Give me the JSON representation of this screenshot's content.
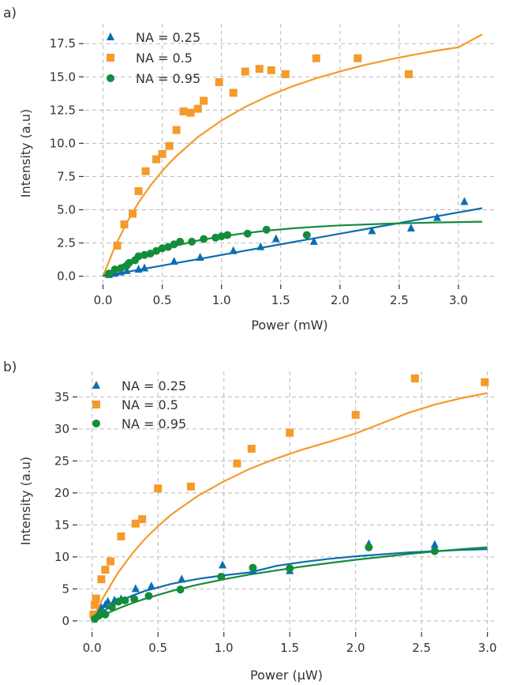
{
  "figure": {
    "background": "#ffffff"
  },
  "colors": {
    "na025": "#0C6DB1",
    "na05": "#F59A2B",
    "na095": "#138D3B",
    "grid": "#B8B8B8",
    "text": "#333333"
  },
  "chart_data": [
    {
      "type": "scatter",
      "panel_label": "a)",
      "xlabel": "Power (mW)",
      "ylabel": "Intensity (a.u)",
      "xlim": [
        -0.15,
        3.3
      ],
      "ylim": [
        -0.5,
        19.0
      ],
      "xticks": [
        0.0,
        0.5,
        1.0,
        1.5,
        2.0,
        2.5,
        3.0
      ],
      "xtick_labels": [
        "0.0",
        "0.5",
        "1.0",
        "1.5",
        "2.0",
        "2.5",
        "3.0"
      ],
      "yticks": [
        0.0,
        2.5,
        5.0,
        7.5,
        10.0,
        12.5,
        15.0,
        17.5
      ],
      "ytick_labels": [
        "0.0",
        "2.5",
        "5.0",
        "7.5",
        "10.0",
        "12.5",
        "15.0",
        "17.5"
      ],
      "grid": true,
      "legend_position": "top-left",
      "series": [
        {
          "name": "NA = 0.25",
          "marker": "triangle",
          "color": "#0C6DB1",
          "points": [
            [
              0.05,
              0.1
            ],
            [
              0.1,
              0.2
            ],
            [
              0.15,
              0.3
            ],
            [
              0.2,
              0.4
            ],
            [
              0.3,
              0.5
            ],
            [
              0.35,
              0.6
            ],
            [
              0.6,
              1.1
            ],
            [
              0.82,
              1.4
            ],
            [
              1.1,
              1.9
            ],
            [
              1.33,
              2.2
            ],
            [
              1.46,
              2.8
            ],
            [
              1.78,
              2.6
            ],
            [
              2.27,
              3.4
            ],
            [
              2.6,
              3.6
            ],
            [
              2.82,
              4.4
            ],
            [
              3.05,
              5.6
            ]
          ],
          "fit": [
            [
              0.0,
              0.0
            ],
            [
              0.4,
              0.64
            ],
            [
              0.8,
              1.28
            ],
            [
              1.2,
              1.92
            ],
            [
              1.6,
              2.56
            ],
            [
              2.0,
              3.2
            ],
            [
              2.4,
              3.84
            ],
            [
              2.8,
              4.48
            ],
            [
              3.2,
              5.12
            ]
          ]
        },
        {
          "name": "NA = 0.5",
          "marker": "square",
          "color": "#F59A2B",
          "points": [
            [
              0.12,
              2.3
            ],
            [
              0.18,
              3.9
            ],
            [
              0.25,
              4.7
            ],
            [
              0.3,
              6.4
            ],
            [
              0.36,
              7.9
            ],
            [
              0.45,
              8.8
            ],
            [
              0.5,
              9.2
            ],
            [
              0.56,
              9.8
            ],
            [
              0.62,
              11.0
            ],
            [
              0.68,
              12.4
            ],
            [
              0.74,
              12.3
            ],
            [
              0.8,
              12.6
            ],
            [
              0.85,
              13.2
            ],
            [
              0.98,
              14.6
            ],
            [
              1.1,
              13.8
            ],
            [
              1.2,
              15.4
            ],
            [
              1.32,
              15.6
            ],
            [
              1.42,
              15.5
            ],
            [
              1.54,
              15.2
            ],
            [
              1.8,
              16.4
            ],
            [
              2.15,
              16.4
            ],
            [
              2.58,
              15.2
            ]
          ],
          "fit": [
            [
              0.0,
              0.0
            ],
            [
              0.1,
              2.21
            ],
            [
              0.2,
              4.02
            ],
            [
              0.3,
              5.54
            ],
            [
              0.4,
              6.82
            ],
            [
              0.5,
              7.92
            ],
            [
              0.6,
              8.88
            ],
            [
              0.8,
              10.47
            ],
            [
              1.0,
              11.72
            ],
            [
              1.2,
              12.74
            ],
            [
              1.4,
              13.58
            ],
            [
              1.6,
              14.29
            ],
            [
              1.8,
              14.89
            ],
            [
              2.0,
              15.41
            ],
            [
              2.2,
              15.87
            ],
            [
              2.4,
              16.27
            ],
            [
              2.6,
              16.63
            ],
            [
              2.8,
              16.95
            ],
            [
              3.0,
              17.23
            ],
            [
              3.2,
              18.2
            ]
          ]
        },
        {
          "name": "NA = 0.95",
          "marker": "circle",
          "color": "#138D3B",
          "points": [
            [
              0.05,
              0.2
            ],
            [
              0.1,
              0.5
            ],
            [
              0.15,
              0.6
            ],
            [
              0.2,
              0.8
            ],
            [
              0.22,
              1.0
            ],
            [
              0.27,
              1.2
            ],
            [
              0.3,
              1.5
            ],
            [
              0.35,
              1.6
            ],
            [
              0.4,
              1.7
            ],
            [
              0.45,
              1.9
            ],
            [
              0.5,
              2.1
            ],
            [
              0.55,
              2.2
            ],
            [
              0.6,
              2.4
            ],
            [
              0.65,
              2.6
            ],
            [
              0.75,
              2.6
            ],
            [
              0.85,
              2.8
            ],
            [
              0.95,
              2.9
            ],
            [
              1.0,
              3.0
            ],
            [
              1.05,
              3.1
            ],
            [
              1.22,
              3.2
            ],
            [
              1.38,
              3.5
            ],
            [
              1.72,
              3.1
            ]
          ],
          "fit": [
            [
              0.0,
              0.0
            ],
            [
              0.1,
              0.56
            ],
            [
              0.2,
              1.02
            ],
            [
              0.3,
              1.41
            ],
            [
              0.4,
              1.74
            ],
            [
              0.5,
              2.03
            ],
            [
              0.6,
              2.27
            ],
            [
              0.8,
              2.68
            ],
            [
              1.0,
              2.99
            ],
            [
              1.2,
              3.24
            ],
            [
              1.4,
              3.44
            ],
            [
              1.6,
              3.6
            ],
            [
              1.8,
              3.72
            ],
            [
              2.0,
              3.82
            ],
            [
              2.4,
              3.95
            ],
            [
              2.8,
              4.04
            ],
            [
              3.2,
              4.1
            ]
          ]
        }
      ]
    },
    {
      "type": "scatter",
      "panel_label": "b)",
      "xlabel": "Power (µW)",
      "ylabel": "Intensity (a.u)",
      "xlim": [
        -0.1,
        3.05
      ],
      "ylim": [
        -1.5,
        39.0
      ],
      "xticks": [
        0.0,
        0.5,
        1.0,
        1.5,
        2.0,
        2.5,
        3.0
      ],
      "xtick_labels": [
        "0.0",
        "0.5",
        "1.0",
        "1.5",
        "2.0",
        "2.5",
        "3.0"
      ],
      "yticks": [
        0,
        5,
        10,
        15,
        20,
        25,
        30,
        35
      ],
      "ytick_labels": [
        "0",
        "5",
        "10",
        "15",
        "20",
        "25",
        "30",
        "35"
      ],
      "grid": true,
      "legend_position": "top-left",
      "series": [
        {
          "name": "NA = 0.25",
          "marker": "triangle",
          "color": "#0C6DB1",
          "points": [
            [
              0.02,
              0.5
            ],
            [
              0.05,
              1.2
            ],
            [
              0.07,
              2.0
            ],
            [
              0.1,
              2.5
            ],
            [
              0.12,
              3.0
            ],
            [
              0.17,
              3.2
            ],
            [
              0.22,
              3.4
            ],
            [
              0.33,
              5.0
            ],
            [
              0.45,
              5.4
            ],
            [
              0.68,
              6.5
            ],
            [
              0.99,
              8.7
            ],
            [
              1.22,
              7.8
            ],
            [
              1.5,
              7.8
            ],
            [
              2.1,
              12.0
            ],
            [
              2.6,
              11.9
            ]
          ],
          "fit": [
            [
              0.0,
              0.0
            ],
            [
              0.1,
              1.7
            ],
            [
              0.2,
              2.95
            ],
            [
              0.3,
              3.91
            ],
            [
              0.4,
              4.66
            ],
            [
              0.6,
              5.77
            ],
            [
              0.8,
              6.55
            ],
            [
              1.0,
              7.13
            ],
            [
              1.2,
              7.57
            ],
            [
              1.4,
              8.6
            ],
            [
              1.6,
              9.2
            ],
            [
              1.8,
              9.7
            ],
            [
              2.0,
              10.1
            ],
            [
              2.2,
              10.4
            ],
            [
              2.4,
              10.7
            ],
            [
              2.6,
              10.9
            ],
            [
              2.8,
              11.1
            ],
            [
              3.0,
              11.2
            ]
          ]
        },
        {
          "name": "NA = 0.5",
          "marker": "square",
          "color": "#F59A2B",
          "points": [
            [
              0.01,
              1.0
            ],
            [
              0.02,
              2.5
            ],
            [
              0.03,
              3.5
            ],
            [
              0.07,
              6.5
            ],
            [
              0.1,
              8.0
            ],
            [
              0.14,
              9.3
            ],
            [
              0.22,
              13.2
            ],
            [
              0.33,
              15.2
            ],
            [
              0.38,
              15.9
            ],
            [
              0.5,
              20.7
            ],
            [
              0.75,
              21.0
            ],
            [
              1.1,
              24.6
            ],
            [
              1.21,
              26.9
            ],
            [
              1.5,
              29.4
            ],
            [
              2.0,
              32.2
            ],
            [
              2.45,
              37.9
            ],
            [
              2.98,
              37.3
            ]
          ],
          "fit": [
            [
              0.0,
              0.0
            ],
            [
              0.05,
              2.2
            ],
            [
              0.1,
              4.2
            ],
            [
              0.2,
              7.6
            ],
            [
              0.3,
              10.4
            ],
            [
              0.4,
              12.8
            ],
            [
              0.5,
              14.8
            ],
            [
              0.6,
              16.6
            ],
            [
              0.8,
              19.5
            ],
            [
              1.0,
              21.8
            ],
            [
              1.2,
              23.8
            ],
            [
              1.4,
              25.4
            ],
            [
              1.6,
              26.8
            ],
            [
              1.8,
              28.0
            ],
            [
              2.0,
              29.3
            ],
            [
              2.2,
              30.9
            ],
            [
              2.4,
              32.5
            ],
            [
              2.6,
              33.8
            ],
            [
              2.8,
              34.8
            ],
            [
              3.0,
              35.6
            ]
          ]
        },
        {
          "name": "NA = 0.95",
          "marker": "circle",
          "color": "#138D3B",
          "points": [
            [
              0.02,
              0.3
            ],
            [
              0.05,
              0.8
            ],
            [
              0.08,
              1.3
            ],
            [
              0.1,
              1.0
            ],
            [
              0.15,
              2.2
            ],
            [
              0.2,
              3.0
            ],
            [
              0.25,
              3.2
            ],
            [
              0.32,
              3.4
            ],
            [
              0.43,
              3.9
            ],
            [
              0.67,
              4.9
            ],
            [
              0.98,
              6.9
            ],
            [
              1.22,
              8.3
            ],
            [
              1.5,
              8.2
            ],
            [
              2.1,
              11.5
            ],
            [
              2.6,
              10.9
            ]
          ],
          "fit": [
            [
              0.0,
              0.0
            ],
            [
              0.1,
              1.05
            ],
            [
              0.2,
              1.95
            ],
            [
              0.3,
              2.75
            ],
            [
              0.4,
              3.45
            ],
            [
              0.6,
              4.65
            ],
            [
              0.8,
              5.65
            ],
            [
              1.0,
              6.5
            ],
            [
              1.2,
              7.25
            ],
            [
              1.4,
              7.9
            ],
            [
              1.6,
              8.5
            ],
            [
              1.8,
              9.05
            ],
            [
              2.0,
              9.55
            ],
            [
              2.2,
              10.0
            ],
            [
              2.4,
              10.45
            ],
            [
              2.6,
              10.85
            ],
            [
              2.8,
              11.2
            ],
            [
              3.0,
              11.5
            ]
          ]
        }
      ]
    }
  ]
}
